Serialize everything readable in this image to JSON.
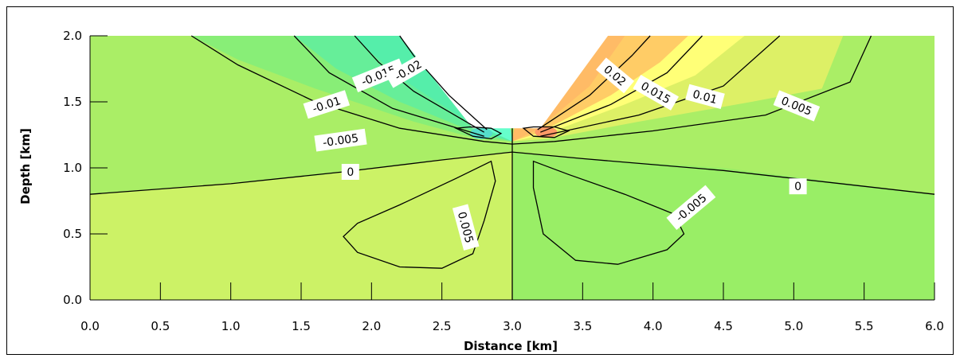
{
  "chart_data": {
    "type": "contour",
    "xlabel": "Distance [km]",
    "ylabel": "Depth [km]",
    "xlim": [
      0.0,
      6.0
    ],
    "ylim": [
      0.0,
      2.0
    ],
    "x_ticks": [
      "0.0",
      "0.5",
      "1.0",
      "1.5",
      "2.0",
      "2.5",
      "3.0",
      "3.5",
      "4.0",
      "4.5",
      "5.0",
      "5.5",
      "6.0"
    ],
    "y_ticks": [
      "0.0",
      "0.5",
      "1.0",
      "1.5",
      "2.0"
    ],
    "contour_levels": [
      -0.02,
      -0.015,
      -0.01,
      -0.005,
      0,
      0.005,
      0.01,
      0.015,
      0.02
    ],
    "contour_labels": [
      {
        "text": "-0.015",
        "x": 2.05,
        "y": 1.7,
        "angle": -22
      },
      {
        "text": "-0.02",
        "x": 2.26,
        "y": 1.74,
        "angle": -30
      },
      {
        "text": "-0.01",
        "x": 1.68,
        "y": 1.48,
        "angle": -18
      },
      {
        "text": "-0.005",
        "x": 1.78,
        "y": 1.21,
        "angle": -8
      },
      {
        "text": "0",
        "x": 1.85,
        "y": 0.97,
        "angle": 0
      },
      {
        "text": "0.005",
        "x": 2.67,
        "y": 0.55,
        "angle": 75
      },
      {
        "text": "0.02",
        "x": 3.73,
        "y": 1.7,
        "angle": 40
      },
      {
        "text": "0.015",
        "x": 4.02,
        "y": 1.57,
        "angle": 30
      },
      {
        "text": "0.01",
        "x": 4.37,
        "y": 1.54,
        "angle": 15
      },
      {
        "text": "0.005",
        "x": 5.02,
        "y": 1.47,
        "angle": 22
      },
      {
        "text": "0",
        "x": 5.03,
        "y": 0.86,
        "angle": 0
      },
      {
        "text": "-0.005",
        "x": 4.27,
        "y": 0.7,
        "angle": -40
      }
    ],
    "legend": "none",
    "grid": false,
    "colors": {
      "zero_upper": "#aaee66",
      "zero_lower_pos": "#ccf266",
      "zero_lower_neg": "#99ee66",
      "neg_005": "#88ee77",
      "neg_010": "#66ee99",
      "neg_015": "#55eeaa",
      "neg_020": "#66ffcc",
      "pos_005": "#ddf066",
      "pos_010": "#ffff77",
      "pos_015": "#ffcc66",
      "pos_020": "#ffbb66",
      "pos_025": "#ff9966",
      "neg_025": "#55ddcc"
    }
  }
}
